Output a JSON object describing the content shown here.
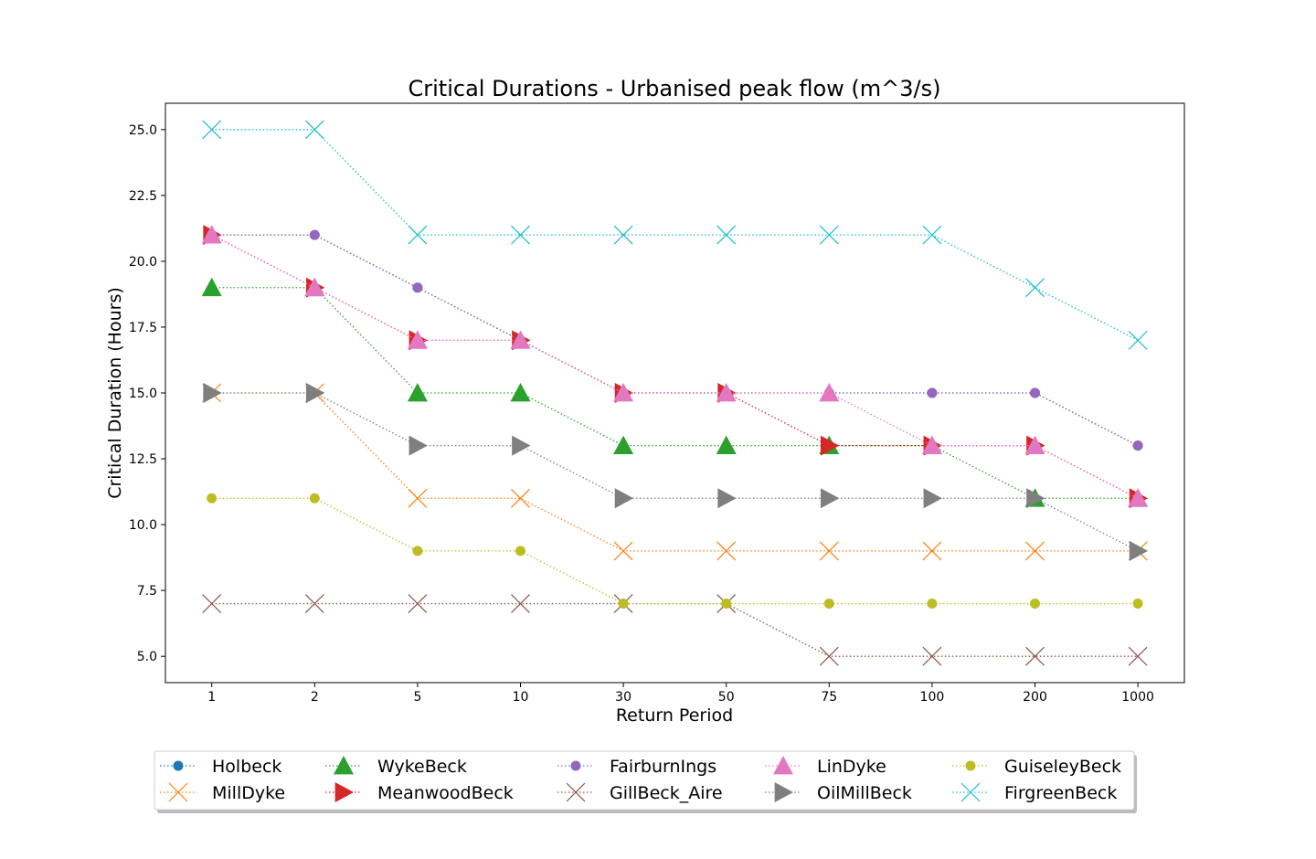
{
  "chart_data": {
    "type": "line",
    "title": "Critical Durations - Urbanised peak flow (m^3/s)",
    "xlabel": "Return Period",
    "ylabel": "Critical Duration (Hours)",
    "categories": [
      "1",
      "2",
      "5",
      "10",
      "30",
      "50",
      "75",
      "100",
      "200",
      "1000"
    ],
    "ylim": [
      4.0,
      26.0
    ],
    "yticks": [
      "5.0",
      "7.5",
      "10.0",
      "12.5",
      "15.0",
      "17.5",
      "20.0",
      "22.5",
      "25.0"
    ],
    "grid": false,
    "legend_position": "bottom",
    "series": [
      {
        "name": "Holbeck",
        "color": "#1f77b4",
        "marker": "circle",
        "values": [
          21,
          21,
          19,
          17,
          15,
          15,
          15,
          15,
          15,
          13
        ]
      },
      {
        "name": "MillDyke",
        "color": "#ff7f0e",
        "marker": "x",
        "values": [
          15,
          15,
          11,
          11,
          9,
          9,
          9,
          9,
          9,
          9
        ]
      },
      {
        "name": "WykeBeck",
        "color": "#2ca02c",
        "marker": "triangle-up",
        "values": [
          19,
          19,
          15,
          15,
          13,
          13,
          13,
          13,
          11,
          11
        ]
      },
      {
        "name": "MeanwoodBeck",
        "color": "#d62728",
        "marker": "triangle-right",
        "values": [
          21,
          19,
          17,
          17,
          15,
          15,
          13,
          13,
          13,
          11
        ]
      },
      {
        "name": "FairburnIngs",
        "color": "#9467bd",
        "marker": "circle",
        "values": [
          21,
          21,
          19,
          17,
          15,
          15,
          15,
          15,
          15,
          13
        ]
      },
      {
        "name": "GillBeck_Aire",
        "color": "#8c564b",
        "marker": "x",
        "values": [
          7,
          7,
          7,
          7,
          7,
          7,
          5,
          5,
          5,
          5
        ]
      },
      {
        "name": "LinDyke",
        "color": "#e377c2",
        "marker": "triangle-up",
        "values": [
          21,
          19,
          17,
          17,
          15,
          15,
          15,
          13,
          13,
          11
        ]
      },
      {
        "name": "OilMillBeck",
        "color": "#7f7f7f",
        "marker": "triangle-right",
        "values": [
          15,
          15,
          13,
          13,
          11,
          11,
          11,
          11,
          11,
          9
        ]
      },
      {
        "name": "GuiseleyBeck",
        "color": "#bcbd22",
        "marker": "circle",
        "values": [
          11,
          11,
          9,
          9,
          7,
          7,
          7,
          7,
          7,
          7
        ]
      },
      {
        "name": "FirgreenBeck",
        "color": "#17becf",
        "marker": "x",
        "values": [
          25,
          25,
          21,
          21,
          21,
          21,
          21,
          21,
          19,
          17
        ]
      }
    ]
  }
}
